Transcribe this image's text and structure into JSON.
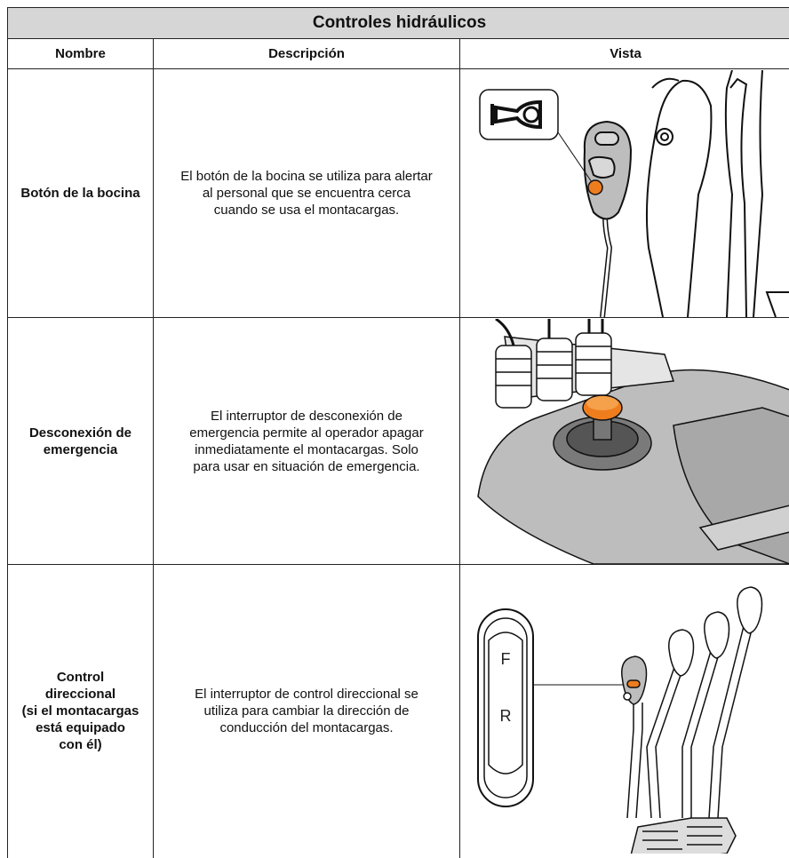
{
  "header": {
    "title": "Controles hidráulicos"
  },
  "table": {
    "columns": [
      "Nombre",
      "Descripción",
      "Vista"
    ],
    "rows": [
      {
        "name": "Botón de la bocina",
        "description": "El botón de la bocina se utiliza para alertar al personal que se encuentra cerca cuando se usa el montacargas."
      },
      {
        "name": "Desconexión de emergencia",
        "description": "El interruptor de desconexión de emergencia permite al operador apagar inmediatamente el montacargas. Solo para usar en situación de emergencia."
      },
      {
        "name": "Control\ndireccional\n(si el montacargas\nestá equipado\ncon él)",
        "description": "El interruptor de control direccional se utiliza para cambiar la dirección de conducción del montacargas.",
        "view_labels": [
          "F",
          "R"
        ]
      }
    ]
  }
}
